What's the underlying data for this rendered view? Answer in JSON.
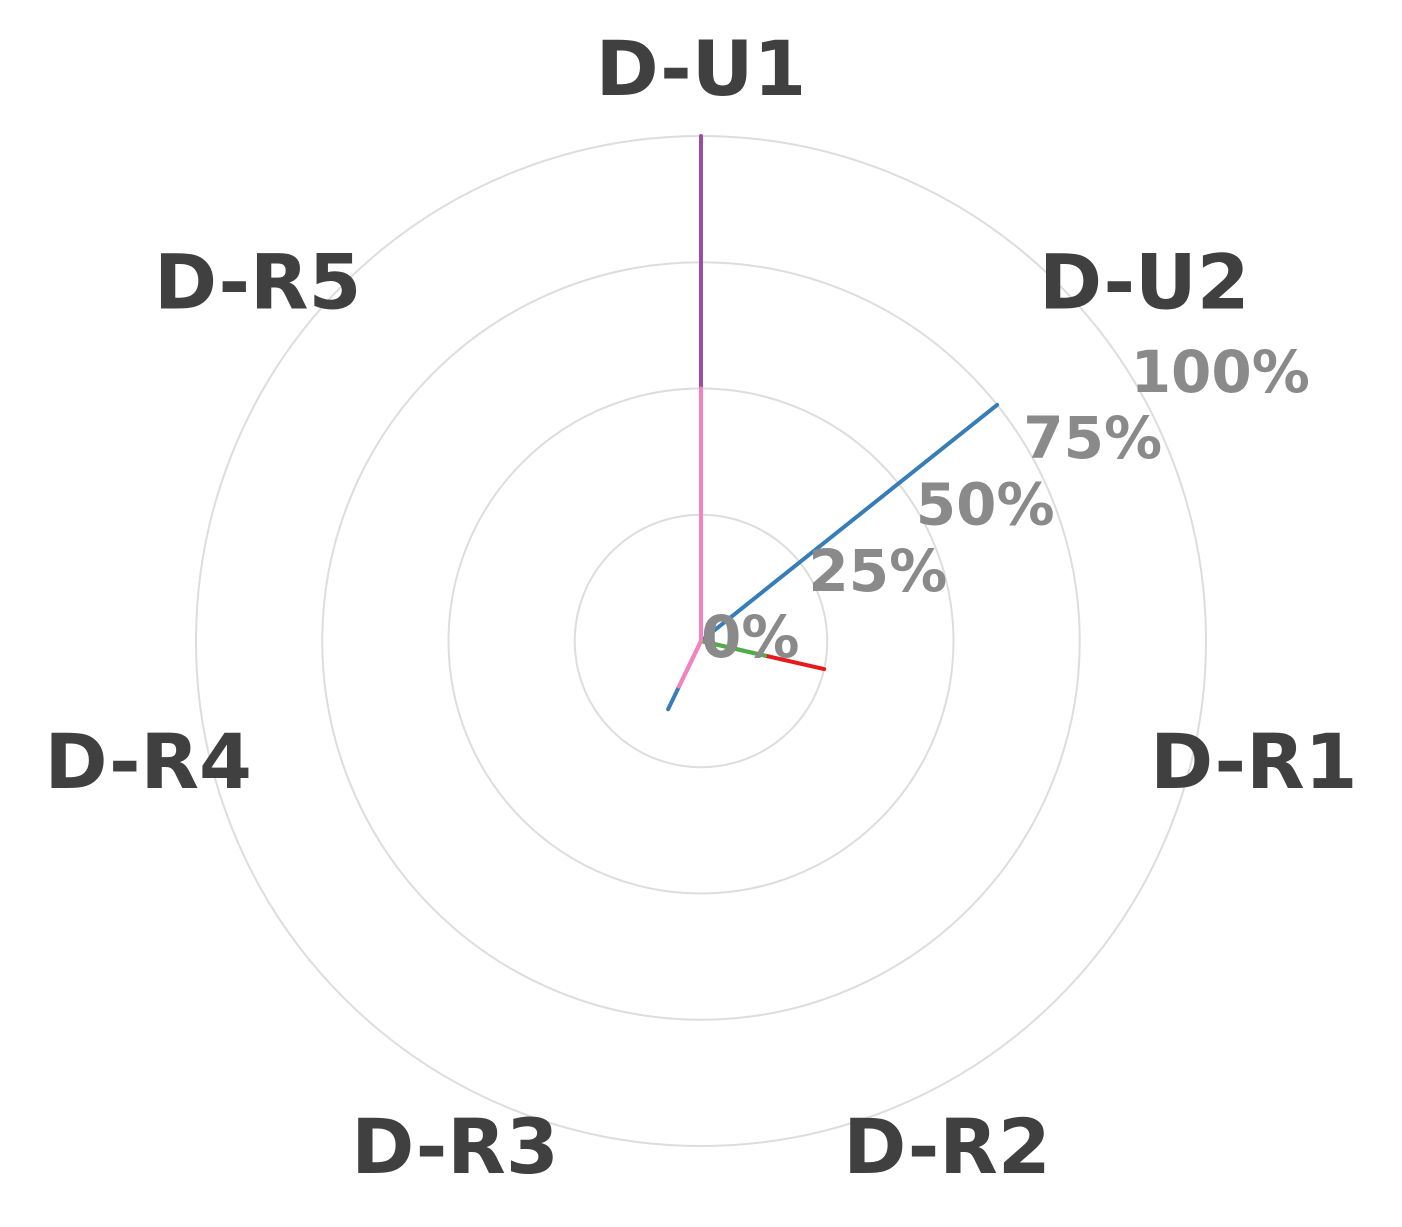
{
  "chart_data": {
    "type": "radar",
    "axes": [
      "D-U1",
      "D-U2",
      "D-R1",
      "D-R2",
      "D-R3",
      "D-R4",
      "D-R5"
    ],
    "radial_ticks": [
      "0%",
      "25%",
      "50%",
      "75%",
      "100%"
    ],
    "rlim": [
      0,
      100
    ],
    "grid": true,
    "series": [
      {
        "color": "#984ea3",
        "values": [
          100,
          0,
          0,
          0,
          0,
          0,
          0
        ]
      },
      {
        "color": "#377eb8",
        "values": [
          0,
          75,
          0,
          0,
          15,
          0,
          0
        ]
      },
      {
        "color": "#e41a1c",
        "values": [
          0,
          0,
          25,
          0,
          0,
          0,
          0
        ]
      },
      {
        "color": "#4daf4a",
        "values": [
          0,
          0,
          13,
          0,
          0,
          0,
          0
        ]
      },
      {
        "color": "#f781bf",
        "values": [
          50,
          0,
          0,
          0,
          10,
          0,
          0
        ]
      }
    ]
  }
}
